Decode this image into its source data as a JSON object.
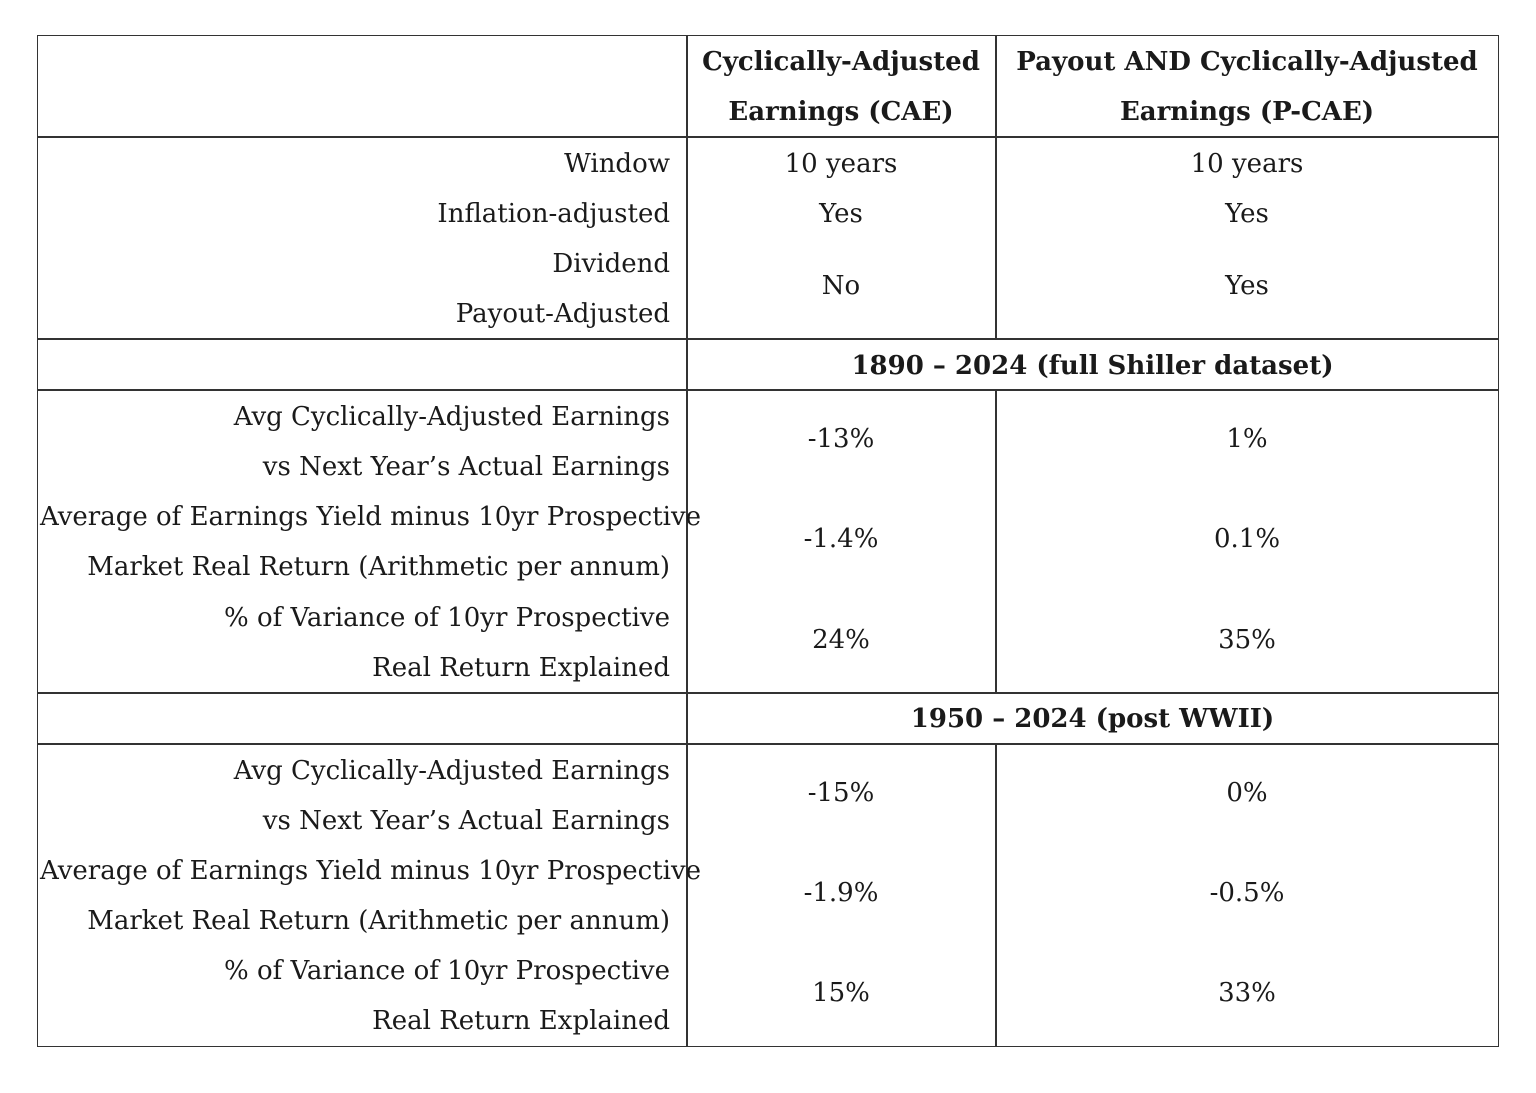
{
  "header": {
    "col1_line1": "Cyclically-Adjusted",
    "col1_line2": "Earnings (CAE)",
    "col2_line1": "Payout AND Cyclically-Adjusted",
    "col2_line2": "Earnings (P-CAE)"
  },
  "properties": {
    "window": {
      "label": "Window",
      "cae": "10 years",
      "pcae": "10 years"
    },
    "inflation": {
      "label": "Inflation-adjusted",
      "cae": "Yes",
      "pcae": "Yes"
    },
    "dividend": {
      "label_line1": "Dividend",
      "label_line2": "Payout-Adjusted",
      "cae": "No",
      "pcae": "Yes"
    }
  },
  "period1": {
    "title": "1890 – 2024 (full Shiller dataset)",
    "rows": [
      {
        "label_line1": "Avg Cyclically-Adjusted Earnings",
        "label_line2": "vs Next Year’s Actual Earnings",
        "cae": "-13%",
        "pcae": "1%"
      },
      {
        "label_line1": "Average of Earnings Yield minus 10yr Prospective",
        "label_line2": "Market Real Return (Arithmetic per annum)",
        "cae": "-1.4%",
        "pcae": "0.1%"
      },
      {
        "label_line1": "% of Variance of 10yr Prospective",
        "label_line2": "Real Return Explained",
        "cae": "24%",
        "pcae": "35%"
      }
    ]
  },
  "period2": {
    "title": "1950 – 2024 (post WWII)",
    "rows": [
      {
        "label_line1": "Avg Cyclically-Adjusted Earnings",
        "label_line2": "vs Next Year’s Actual Earnings",
        "cae": "-15%",
        "pcae": "0%"
      },
      {
        "label_line1": "Average of Earnings Yield minus 10yr Prospective",
        "label_line2": "Market Real Return (Arithmetic per annum)",
        "cae": "-1.9%",
        "pcae": "-0.5%"
      },
      {
        "label_line1": "% of Variance of 10yr Prospective",
        "label_line2": "Real Return Explained",
        "cae": "15%",
        "pcae": "33%"
      }
    ]
  }
}
